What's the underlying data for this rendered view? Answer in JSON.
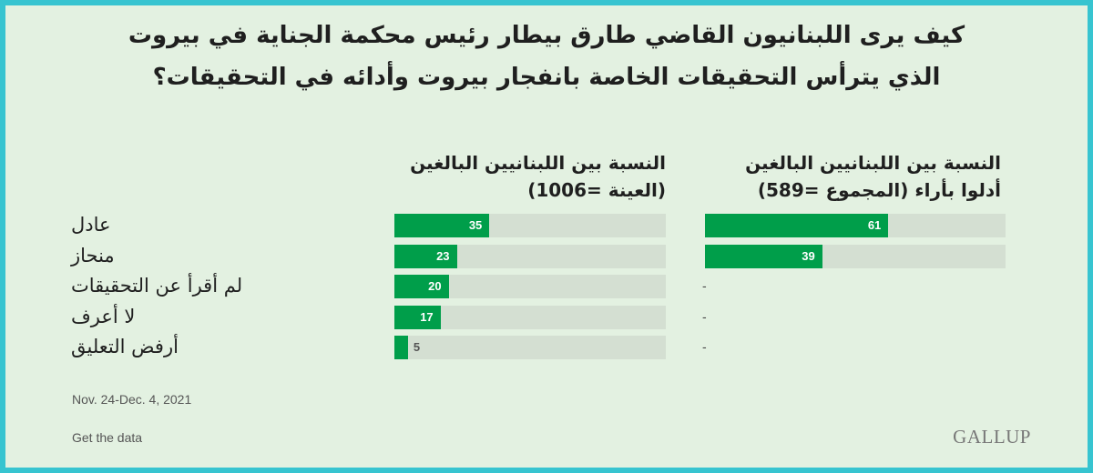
{
  "title": {
    "line1": "كيف يرى اللبنانيون القاضي طارق بيطار رئيس محكمة الجناية في بيروت",
    "line2": "الذي يترأس التحقيقات الخاصة بانفجار بيروت وأدائه في التحقيقات؟"
  },
  "columns": {
    "all_line1": "النسبة بين اللبنانيين البالغين",
    "all_line2": "(العينة =1006)",
    "opinion_line1": "النسبة بين اللبنانيين البالغين",
    "opinion_line2": "أدلوا بأراء (المجموع =589)"
  },
  "chart_data": {
    "type": "bar",
    "categories": [
      "عادل",
      "منحاز",
      "لم أقرأ عن التحقيقات",
      "لا أعرف",
      "أرفض التعليق"
    ],
    "series": [
      {
        "name": "النسبة بين اللبنانيين البالغين (العينة =1006)",
        "values": [
          35,
          23,
          20,
          17,
          5
        ]
      },
      {
        "name": "النسبة بين اللبنانيين البالغين أدلوا بأراء (المجموع =589)",
        "values": [
          61,
          39,
          null,
          null,
          null
        ]
      }
    ],
    "ylim": [
      0,
      100
    ],
    "missing_label": "-"
  },
  "footer": {
    "date": "Nov. 24-Dec. 4, 2021",
    "get_data": "Get the data",
    "logo": "GALLUP"
  },
  "colors": {
    "bar": "#009e4a",
    "track": "#d4dfd2",
    "background": "#e3f1e1",
    "border": "#37c4d0"
  }
}
